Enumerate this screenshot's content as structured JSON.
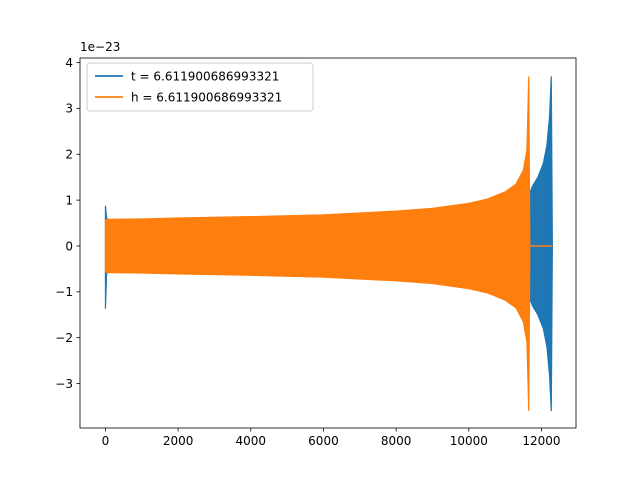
{
  "chart_data": {
    "type": "line",
    "title": "",
    "xlabel": "",
    "ylabel": "",
    "y_offset_label": "1e−23",
    "xlim": [
      -700,
      12950
    ],
    "ylim": [
      -3.97,
      4.1
    ],
    "x_ticks": [
      0,
      2000,
      4000,
      6000,
      8000,
      10000,
      12000
    ],
    "x_tick_labels": [
      "0",
      "2000",
      "4000",
      "6000",
      "8000",
      "10000",
      "12000"
    ],
    "y_ticks": [
      -3,
      -2,
      -1,
      0,
      1,
      2,
      3,
      4
    ],
    "y_tick_labels": [
      "−3",
      "−2",
      "−1",
      "0",
      "1",
      "2",
      "3",
      "4"
    ],
    "grid": false,
    "legend_position": "top-left",
    "series": [
      {
        "name": "t = 6.611900686993321",
        "color": "#1f77b4",
        "envelope": {
          "x": [
            0,
            30,
            60,
            1000,
            2000,
            4000,
            6000,
            8000,
            10000,
            11000,
            11500,
            11700,
            11750,
            11900,
            12050,
            12150,
            12220,
            12270,
            12300
          ],
          "upper": [
            0.88,
            0.62,
            0.57,
            0.57,
            0.58,
            0.61,
            0.65,
            0.71,
            0.82,
            0.94,
            1.05,
            1.2,
            1.3,
            1.5,
            1.8,
            2.2,
            2.8,
            3.7,
            0
          ],
          "lower": [
            -1.37,
            -0.62,
            -0.57,
            -0.57,
            -0.58,
            -0.61,
            -0.65,
            -0.71,
            -0.82,
            -0.94,
            -1.05,
            -1.2,
            -1.3,
            -1.5,
            -1.8,
            -2.2,
            -2.8,
            -3.6,
            0
          ]
        }
      },
      {
        "name": "h = 6.611900686993321",
        "color": "#ff7f0e",
        "envelope": {
          "x": [
            0,
            30,
            1000,
            2000,
            4000,
            6000,
            8000,
            9000,
            10000,
            10500,
            11000,
            11300,
            11500,
            11600,
            11650,
            11680
          ],
          "upper": [
            0.55,
            0.58,
            0.59,
            0.61,
            0.64,
            0.68,
            0.76,
            0.82,
            0.93,
            1.02,
            1.18,
            1.35,
            1.65,
            2.1,
            3.7,
            0
          ],
          "lower": [
            -0.55,
            -0.58,
            -0.59,
            -0.61,
            -0.64,
            -0.68,
            -0.76,
            -0.82,
            -0.93,
            -1.02,
            -1.18,
            -1.35,
            -1.65,
            -2.1,
            -3.6,
            0
          ]
        },
        "tail": {
          "x": [
            11680,
            12300
          ],
          "y": [
            0,
            0
          ]
        }
      }
    ]
  }
}
